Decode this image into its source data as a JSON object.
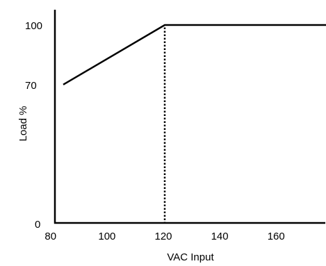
{
  "chart_data": {
    "type": "line",
    "title": "",
    "xlabel": "VAC Input",
    "ylabel": "Load %",
    "x_ticks": [
      80,
      100,
      120,
      140,
      160
    ],
    "x_tick_labels": [
      "80",
      "100",
      "120",
      "140",
      "160"
    ],
    "y_ticks": [
      0,
      70,
      100
    ],
    "y_tick_labels": [
      "0",
      "70",
      "100"
    ],
    "xlim": [
      80,
      178
    ],
    "ylim": [
      0,
      110
    ],
    "grid": false,
    "series": [
      {
        "x": [
          84,
          120,
          178
        ],
        "y": [
          70,
          100,
          100
        ]
      }
    ],
    "annotations": [
      {
        "type": "vertical-dotted-line",
        "x": 120,
        "y_from": 0,
        "y_to": 100
      }
    ]
  }
}
